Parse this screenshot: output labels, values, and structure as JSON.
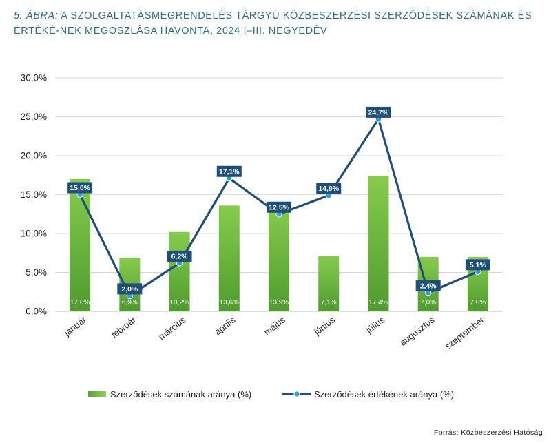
{
  "figure": {
    "prefix": "5. ÁBRA:",
    "title": "A SZOLGÁLTATÁSMEGRENDELÉS TÁRGYÚ KÖZBESZERZÉSI SZERZŐDÉSEK SZÁMÁNAK ÉS ÉRTÉKÉ-NEK MEGOSZLÁSA HAVONTA, 2024 I–III. NEGYEDÉV",
    "source": "Forrás: Közbeszerzési Hatóság"
  },
  "chart_data": {
    "type": "bar",
    "categories": [
      "január",
      "február",
      "március",
      "április",
      "május",
      "június",
      "július",
      "augusztus",
      "szeptember"
    ],
    "ylim": [
      0,
      30
    ],
    "yticks": [
      "0,0%",
      "5,0%",
      "10,0%",
      "15,0%",
      "20,0%",
      "25,0%",
      "30,0%"
    ],
    "grid": true,
    "legend_position": "bottom",
    "series": [
      {
        "name": "Szerződések számának aránya (%)",
        "type": "bar",
        "color": "#7cc242",
        "values": [
          17.0,
          6.9,
          10.2,
          13.6,
          13.9,
          7.1,
          17.4,
          7.0,
          7.0
        ],
        "labels": [
          "17,0%",
          "6,9%",
          "10,2%",
          "13,6%",
          "13,9%",
          "7,1%",
          "17,4%",
          "7,0%",
          "7,0%"
        ]
      },
      {
        "name": "Szerződések értékének aránya (%)",
        "type": "line",
        "color": "#1f4e79",
        "marker_color": "#2e9fd8",
        "values": [
          15.0,
          2.0,
          6.2,
          17.1,
          12.5,
          14.9,
          24.7,
          2.4,
          5.1
        ],
        "labels": [
          "15,0%",
          "2,0%",
          "6,2%",
          "17,1%",
          "12,5%",
          "14,9%",
          "24,7%",
          "2,4%",
          "5,1%"
        ]
      }
    ]
  }
}
